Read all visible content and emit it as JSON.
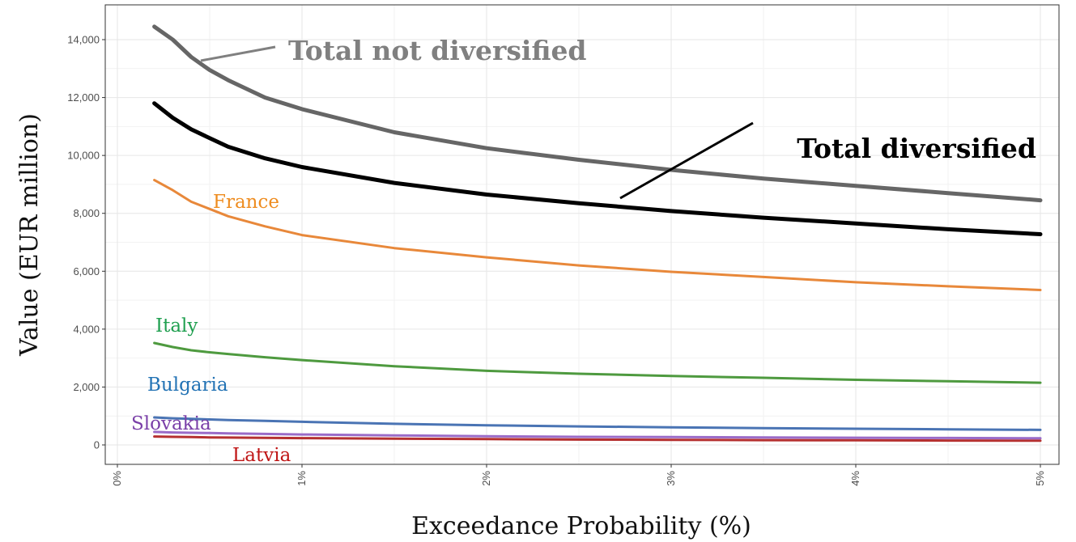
{
  "chart_data": {
    "type": "line",
    "xlabel": "Exceedance Probability (%)",
    "ylabel": "Value (EUR million)",
    "xlim": [
      0,
      5
    ],
    "ylim": [
      -300,
      15000
    ],
    "x_ticks": [
      0,
      1,
      2,
      3,
      4,
      5
    ],
    "x_tick_labels": [
      "0%",
      "1%",
      "2%",
      "3%",
      "4%",
      "5%"
    ],
    "y_ticks": [
      0,
      2000,
      4000,
      6000,
      8000,
      10000,
      12000,
      14000
    ],
    "y_tick_labels": [
      "0",
      "2,000",
      "4,000",
      "6,000",
      "8,000",
      "10,000",
      "12,000",
      "14,000"
    ],
    "grid": true,
    "x": [
      0.2,
      0.3,
      0.4,
      0.5,
      0.6,
      0.8,
      1.0,
      1.5,
      2.0,
      2.5,
      3.0,
      3.5,
      4.0,
      4.5,
      5.0
    ],
    "series": [
      {
        "name": "Total not diversified",
        "color": "#666666",
        "width": 5,
        "values": [
          14450,
          14000,
          13400,
          12950,
          12600,
          12000,
          11600,
          10800,
          10250,
          9850,
          9500,
          9200,
          8950,
          8700,
          8450
        ]
      },
      {
        "name": "Total diversified",
        "color": "#000000",
        "width": 5,
        "values": [
          11800,
          11300,
          10900,
          10600,
          10300,
          9900,
          9600,
          9050,
          8650,
          8350,
          8080,
          7850,
          7650,
          7450,
          7280
        ]
      },
      {
        "name": "France",
        "color": "#e8883a",
        "width": 3,
        "values": [
          9150,
          8800,
          8400,
          8150,
          7900,
          7550,
          7250,
          6800,
          6480,
          6200,
          5980,
          5800,
          5620,
          5480,
          5350
        ]
      },
      {
        "name": "Italy",
        "color": "#4e9a3f",
        "width": 3,
        "values": [
          3520,
          3380,
          3270,
          3200,
          3140,
          3030,
          2930,
          2720,
          2560,
          2460,
          2380,
          2320,
          2250,
          2200,
          2150
        ]
      },
      {
        "name": "Bulgaria",
        "color": "#4a74b4",
        "width": 3,
        "values": [
          950,
          920,
          900,
          880,
          860,
          830,
          800,
          730,
          680,
          640,
          610,
          580,
          560,
          540,
          520
        ]
      },
      {
        "name": "Slovakia",
        "color": "#9a6bc8",
        "width": 3,
        "values": [
          450,
          430,
          420,
          410,
          400,
          380,
          360,
          330,
          300,
          280,
          270,
          260,
          250,
          240,
          230
        ]
      },
      {
        "name": "Latvia",
        "color": "#b53030",
        "width": 3,
        "values": [
          290,
          280,
          270,
          260,
          255,
          245,
          235,
          215,
          200,
          185,
          175,
          165,
          160,
          150,
          145
        ]
      }
    ],
    "annotations": [
      {
        "text": "Total not diversified",
        "color": "#808080",
        "bold": true
      },
      {
        "text": "Total diversified",
        "color": "#000000",
        "bold": true
      },
      {
        "text": "France",
        "color": "#ee8c1f",
        "bold": false
      },
      {
        "text": "Italy",
        "color": "#1f9f4f",
        "bold": false
      },
      {
        "text": "Bulgaria",
        "color": "#2272b4",
        "bold": false
      },
      {
        "text": "Slovakia",
        "color": "#7a3fa8",
        "bold": false
      },
      {
        "text": "Latvia",
        "color": "#bf1414",
        "bold": false
      }
    ]
  }
}
